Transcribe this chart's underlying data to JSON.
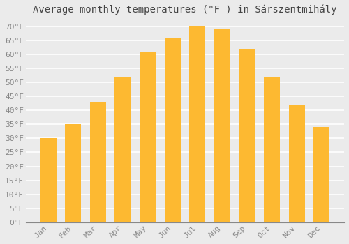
{
  "title": "Average monthly temperatures (°F ) in Sárszentmihály",
  "months": [
    "Jan",
    "Feb",
    "Mar",
    "Apr",
    "May",
    "Jun",
    "Jul",
    "Aug",
    "Sep",
    "Oct",
    "Nov",
    "Dec"
  ],
  "values": [
    30,
    35,
    43,
    52,
    61,
    66,
    70,
    69,
    62,
    52,
    42,
    34
  ],
  "bar_color_top": "#FDB931",
  "bar_color_bottom": "#F5A800",
  "background_color": "#ebebeb",
  "grid_color": "#ffffff",
  "ylim": [
    0,
    72
  ],
  "yticks": [
    0,
    5,
    10,
    15,
    20,
    25,
    30,
    35,
    40,
    45,
    50,
    55,
    60,
    65,
    70
  ],
  "title_fontsize": 10,
  "tick_fontsize": 8
}
